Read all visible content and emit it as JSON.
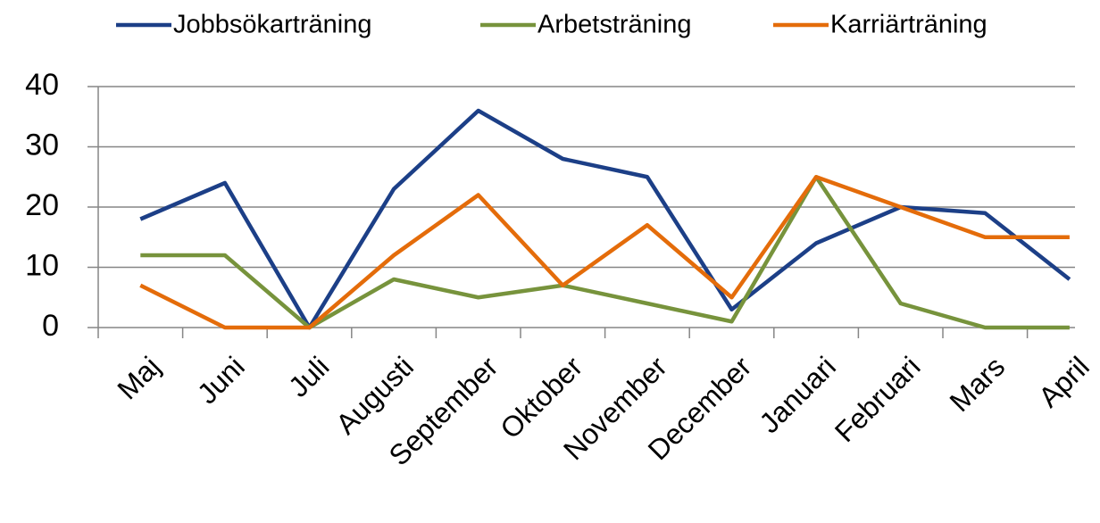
{
  "chart_data": {
    "type": "line",
    "categories": [
      "Maj",
      "Juni",
      "Juli",
      "Augusti",
      "September",
      "Oktober",
      "November",
      "December",
      "Januari",
      "Februari",
      "Mars",
      "April"
    ],
    "series": [
      {
        "name": "Jobbsökarträning",
        "color": "#1c3f87",
        "values": [
          18,
          24,
          0,
          23,
          36,
          28,
          25,
          3,
          14,
          20,
          19,
          8
        ]
      },
      {
        "name": "Arbetsträning",
        "color": "#77933c",
        "values": [
          12,
          12,
          0,
          8,
          5,
          7,
          4,
          1,
          25,
          4,
          0,
          0
        ]
      },
      {
        "name": "Karriärträning",
        "color": "#e46c0a",
        "values": [
          7,
          0,
          0,
          12,
          22,
          7,
          17,
          5,
          25,
          20,
          15,
          15
        ]
      }
    ],
    "ylim": [
      0,
      40
    ],
    "yticks": [
      0,
      10,
      20,
      30,
      40
    ],
    "grid": true,
    "legend": "top"
  }
}
